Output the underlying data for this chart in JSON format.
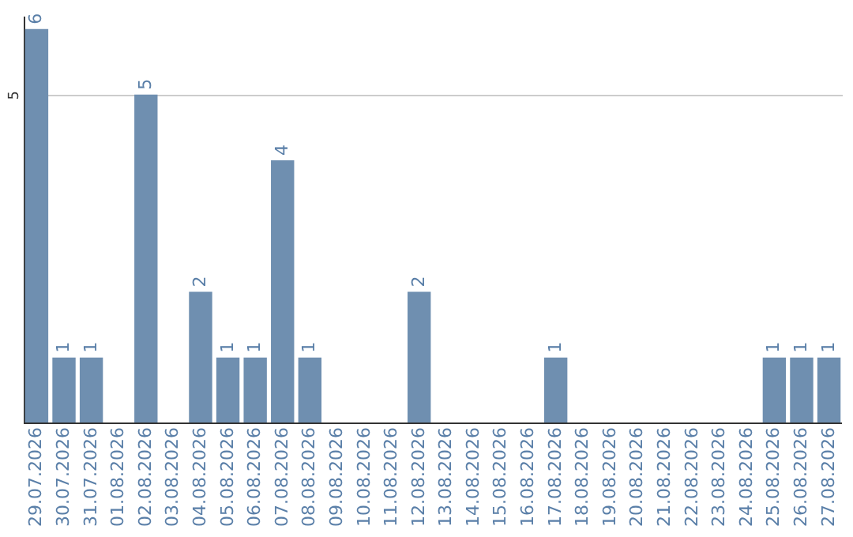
{
  "chart_data": {
    "type": "bar",
    "categories": [
      "29.07.2026",
      "30.07.2026",
      "31.07.2026",
      "01.08.2026",
      "02.08.2026",
      "03.08.2026",
      "04.08.2026",
      "05.08.2026",
      "06.08.2026",
      "07.08.2026",
      "08.08.2026",
      "09.08.2026",
      "10.08.2026",
      "11.08.2026",
      "12.08.2026",
      "13.08.2026",
      "14.08.2026",
      "15.08.2026",
      "16.08.2026",
      "17.08.2026",
      "18.08.2026",
      "19.08.2026",
      "20.08.2026",
      "21.08.2026",
      "22.08.2026",
      "23.08.2026",
      "24.08.2026",
      "25.08.2026",
      "26.08.2026",
      "27.08.2026"
    ],
    "values": [
      6,
      1,
      1,
      0,
      5,
      0,
      2,
      1,
      1,
      4,
      1,
      0,
      0,
      0,
      2,
      0,
      0,
      0,
      0,
      1,
      0,
      0,
      0,
      0,
      0,
      0,
      0,
      1,
      1,
      1
    ],
    "value_labels": [
      "6",
      "1",
      "1",
      null,
      "5",
      null,
      "2",
      "1",
      "1",
      "4",
      "1",
      null,
      null,
      null,
      "2",
      null,
      null,
      null,
      null,
      "1",
      null,
      null,
      null,
      null,
      null,
      null,
      null,
      "1",
      "1",
      "1"
    ],
    "color": "#6f8fb0",
    "ylim": [
      0,
      6.2
    ],
    "yticks": [
      5
    ],
    "grid": "y"
  }
}
